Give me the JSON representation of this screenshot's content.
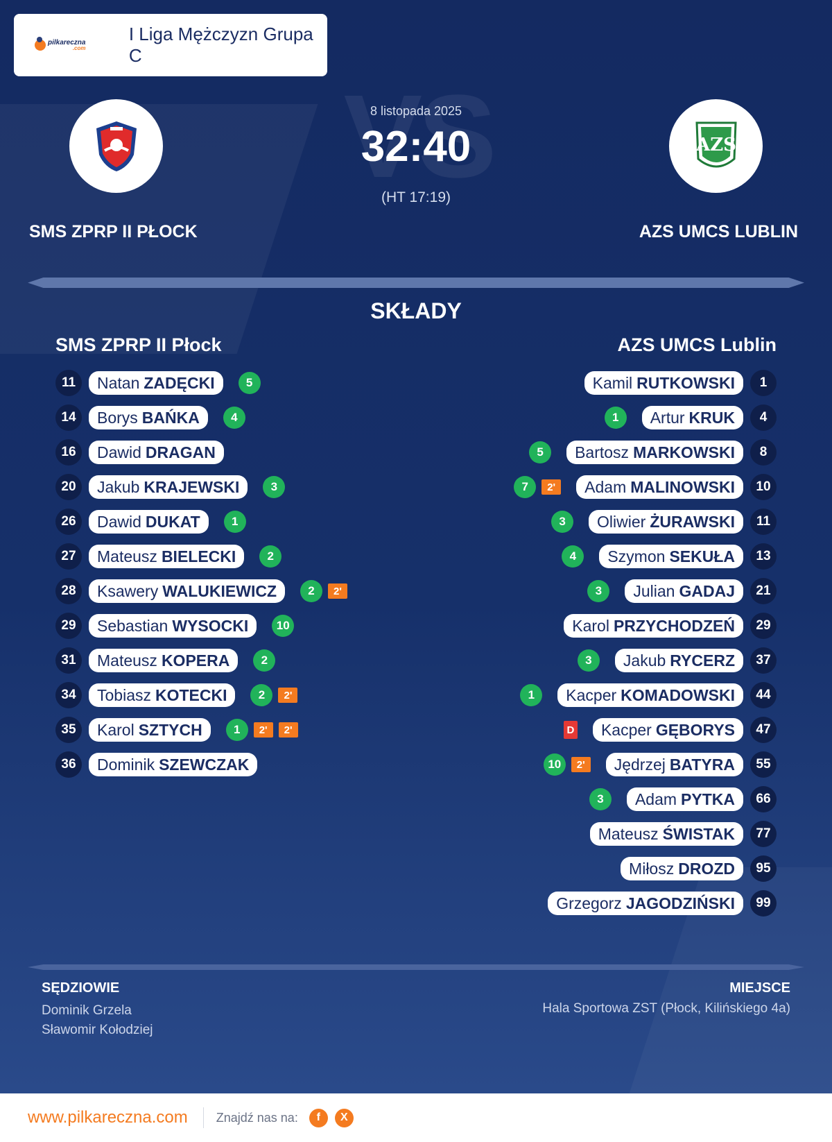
{
  "league": {
    "brand": "pilkareczna",
    "brand_sub": ".com",
    "title": "I Liga Mężczyzn Grupa C"
  },
  "match": {
    "date": "8 listopada 2025",
    "score": "32:40",
    "halftime": "(HT 17:19)",
    "vs": "VS"
  },
  "home": {
    "name_upper": "SMS ZPRP II PŁOCK",
    "name": "SMS ZPRP II Płock"
  },
  "away": {
    "name_upper": "AZS UMCS LUBLIN",
    "name": "AZS UMCS Lublin"
  },
  "squads_title": "SKŁADY",
  "home_roster": [
    {
      "number": "11",
      "first": "Natan",
      "last": "ZADĘCKI",
      "goals": "5",
      "cards": []
    },
    {
      "number": "14",
      "first": "Borys",
      "last": "BAŃKA",
      "goals": "4",
      "cards": []
    },
    {
      "number": "16",
      "first": "Dawid",
      "last": "DRAGAN",
      "goals": "",
      "cards": []
    },
    {
      "number": "20",
      "first": "Jakub",
      "last": "KRAJEWSKI",
      "goals": "3",
      "cards": []
    },
    {
      "number": "26",
      "first": "Dawid",
      "last": "DUKAT",
      "goals": "1",
      "cards": []
    },
    {
      "number": "27",
      "first": "Mateusz",
      "last": "BIELECKI",
      "goals": "2",
      "cards": []
    },
    {
      "number": "28",
      "first": "Ksawery",
      "last": "WALUKIEWICZ",
      "goals": "2",
      "cards": [
        "2'"
      ]
    },
    {
      "number": "29",
      "first": "Sebastian",
      "last": "WYSOCKI",
      "goals": "10",
      "cards": []
    },
    {
      "number": "31",
      "first": "Mateusz",
      "last": "KOPERA",
      "goals": "2",
      "cards": []
    },
    {
      "number": "34",
      "first": "Tobiasz",
      "last": "KOTECKI",
      "goals": "2",
      "cards": [
        "2'"
      ]
    },
    {
      "number": "35",
      "first": "Karol",
      "last": "SZTYCH",
      "goals": "1",
      "cards": [
        "2'",
        "2'"
      ]
    },
    {
      "number": "36",
      "first": "Dominik",
      "last": "SZEWCZAK",
      "goals": "",
      "cards": []
    }
  ],
  "away_roster": [
    {
      "number": "1",
      "first": "Kamil",
      "last": "RUTKOWSKI",
      "goals": "",
      "cards": []
    },
    {
      "number": "4",
      "first": "Artur",
      "last": "KRUK",
      "goals": "1",
      "cards": []
    },
    {
      "number": "8",
      "first": "Bartosz",
      "last": "MARKOWSKI",
      "goals": "5",
      "cards": []
    },
    {
      "number": "10",
      "first": "Adam",
      "last": "MALINOWSKI",
      "goals": "7",
      "cards": [
        "2'"
      ]
    },
    {
      "number": "11",
      "first": "Oliwier",
      "last": "ŻURAWSKI",
      "goals": "3",
      "cards": []
    },
    {
      "number": "13",
      "first": "Szymon",
      "last": "SEKUŁA",
      "goals": "4",
      "cards": []
    },
    {
      "number": "21",
      "first": "Julian",
      "last": "GADAJ",
      "goals": "3",
      "cards": []
    },
    {
      "number": "29",
      "first": "Karol",
      "last": "PRZYCHODZEŃ",
      "goals": "",
      "cards": []
    },
    {
      "number": "37",
      "first": "Jakub",
      "last": "RYCERZ",
      "goals": "3",
      "cards": []
    },
    {
      "number": "44",
      "first": "Kacper",
      "last": "KOMADOWSKI",
      "goals": "1",
      "cards": []
    },
    {
      "number": "47",
      "first": "Kacper",
      "last": "GĘBORYS",
      "goals": "",
      "cards": [
        "D"
      ]
    },
    {
      "number": "55",
      "first": "Jędrzej",
      "last": "BATYRA",
      "goals": "10",
      "cards": [
        "2'"
      ]
    },
    {
      "number": "66",
      "first": "Adam",
      "last": "PYTKA",
      "goals": "3",
      "cards": []
    },
    {
      "number": "77",
      "first": "Mateusz",
      "last": "ŚWISTAK",
      "goals": "",
      "cards": []
    },
    {
      "number": "95",
      "first": "Miłosz",
      "last": "DROZD",
      "goals": "",
      "cards": []
    },
    {
      "number": "99",
      "first": "Grzegorz",
      "last": "JAGODZIŃSKI",
      "goals": "",
      "cards": []
    }
  ],
  "referees": {
    "title": "SĘDZIOWIE",
    "names": [
      "Dominik Grzela",
      "Sławomir Kołodziej"
    ]
  },
  "venue": {
    "title": "MIEJSCE",
    "text": "Hala Sportowa ZST (Płock, Kilińskiego 4a)"
  },
  "footer": {
    "site": "www.pilkareczna.com",
    "find_label": "Znajdź nas na:",
    "social": [
      {
        "icon": "facebook-icon",
        "glyph": "f"
      },
      {
        "icon": "x-icon",
        "glyph": "X"
      }
    ]
  },
  "colors": {
    "accent": "#f47b20",
    "navy": "#142a61",
    "goal": "#21b35a",
    "disqualification": "#e53935"
  }
}
